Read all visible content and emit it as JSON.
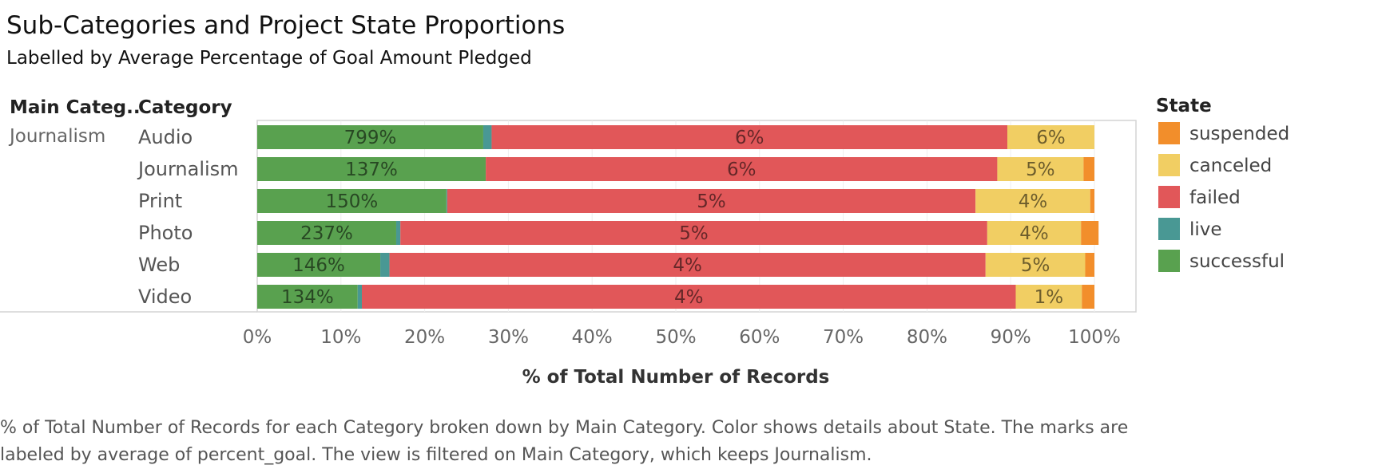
{
  "title": "Sub-Categories and Project State Proportions",
  "subtitle": "Labelled by Average Percentage of Goal Amount Pledged",
  "footer": "% of Total Number of Records for each Category broken down by Main Category.  Color shows details about State.  The marks are labeled by average of percent_goal. The view is filtered on Main Category, which keeps Journalism.",
  "chart_data": {
    "type": "bar",
    "orientation": "horizontal",
    "stacked": "100%",
    "row_headers": [
      "Main Categ..",
      "Category"
    ],
    "main_category": "Journalism",
    "categories": [
      "Audio",
      "Journalism",
      "Print",
      "Photo",
      "Web",
      "Video"
    ],
    "xlabel": "% of Total Number of Records",
    "xlim": [
      0,
      100
    ],
    "x_ticks": [
      "0%",
      "10%",
      "20%",
      "30%",
      "40%",
      "50%",
      "60%",
      "70%",
      "80%",
      "90%",
      "100%"
    ],
    "grid": true,
    "legend_title": "State",
    "legend_position": "right",
    "legend_order": [
      "suspended",
      "canceled",
      "failed",
      "live",
      "successful"
    ],
    "series": [
      {
        "name": "successful",
        "color": "#59a14f",
        "values": [
          27.0,
          27.3,
          22.6,
          16.6,
          14.7,
          12.0
        ],
        "labels": [
          "799%",
          "137%",
          "150%",
          "237%",
          "146%",
          "134%"
        ]
      },
      {
        "name": "live",
        "color": "#499894",
        "values": [
          1.0,
          0.0,
          0.1,
          0.5,
          1.1,
          0.5
        ],
        "labels": [
          "",
          "",
          "",
          "",
          "",
          ""
        ]
      },
      {
        "name": "failed",
        "color": "#e15759",
        "values": [
          61.6,
          61.1,
          63.1,
          70.1,
          71.2,
          78.1
        ],
        "labels": [
          "6%",
          "6%",
          "5%",
          "5%",
          "4%",
          "4%"
        ]
      },
      {
        "name": "canceled",
        "color": "#f1ce63",
        "values": [
          10.4,
          10.3,
          13.7,
          11.2,
          11.9,
          7.9
        ],
        "labels": [
          "6%",
          "5%",
          "4%",
          "4%",
          "5%",
          "1%"
        ]
      },
      {
        "name": "suspended",
        "color": "#f28e2b",
        "values": [
          0.0,
          1.3,
          0.5,
          2.1,
          1.1,
          1.5
        ],
        "labels": [
          "",
          "",
          "",
          "",
          "",
          ""
        ]
      }
    ]
  }
}
